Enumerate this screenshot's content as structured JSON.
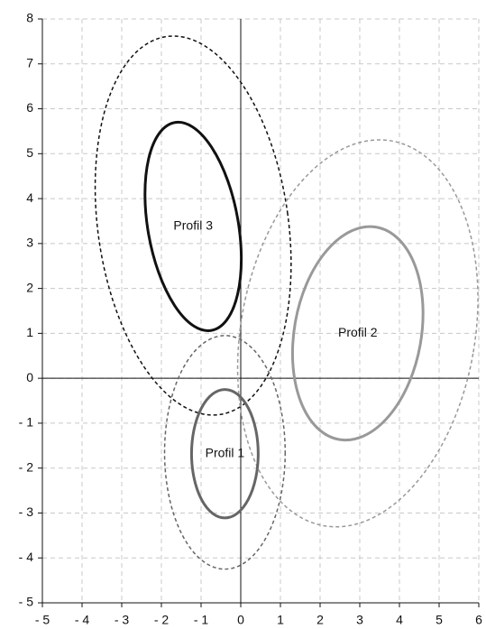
{
  "chart_data": {
    "type": "ellipse",
    "xlim": [
      -5,
      6
    ],
    "ylim": [
      -5,
      8
    ],
    "xticks": [
      {
        "value": -5,
        "label": "- 5"
      },
      {
        "value": -4,
        "label": "- 4"
      },
      {
        "value": -3,
        "label": "- 3"
      },
      {
        "value": -2,
        "label": "- 2"
      },
      {
        "value": -1,
        "label": "- 1"
      },
      0,
      1,
      2,
      3,
      4,
      5,
      6
    ],
    "yticks": [
      {
        "value": -5,
        "label": "- 5"
      },
      {
        "value": -4,
        "label": "- 4"
      },
      {
        "value": -3,
        "label": "- 3"
      },
      {
        "value": -2,
        "label": "- 2"
      },
      {
        "value": -1,
        "label": "- 1"
      },
      0,
      1,
      2,
      3,
      4,
      5,
      6,
      7,
      8
    ],
    "grid": true,
    "series": [
      {
        "name": "Profil 3",
        "color": "#111111",
        "inner": {
          "cx": -1.2,
          "cy": 3.38,
          "rx": 1.14,
          "ry": 2.35,
          "angle": -10
        },
        "outer": {
          "cx": -1.2,
          "cy": 3.4,
          "rx": 2.4,
          "ry": 4.25,
          "angle": -8
        }
      },
      {
        "name": "Profil 2",
        "color": "#999999",
        "inner": {
          "cx": 2.95,
          "cy": 1.0,
          "rx": 1.6,
          "ry": 2.4,
          "angle": 10
        },
        "outer": {
          "cx": 2.95,
          "cy": 1.0,
          "rx": 2.95,
          "ry": 4.35,
          "angle": 10
        }
      },
      {
        "name": "Profil 1",
        "color": "#666666",
        "inner": {
          "cx": -0.4,
          "cy": -1.68,
          "rx": 0.84,
          "ry": 1.43,
          "angle": 0
        },
        "outer": {
          "cx": -0.4,
          "cy": -1.65,
          "rx": 1.52,
          "ry": 2.6,
          "angle": 0
        }
      }
    ]
  }
}
